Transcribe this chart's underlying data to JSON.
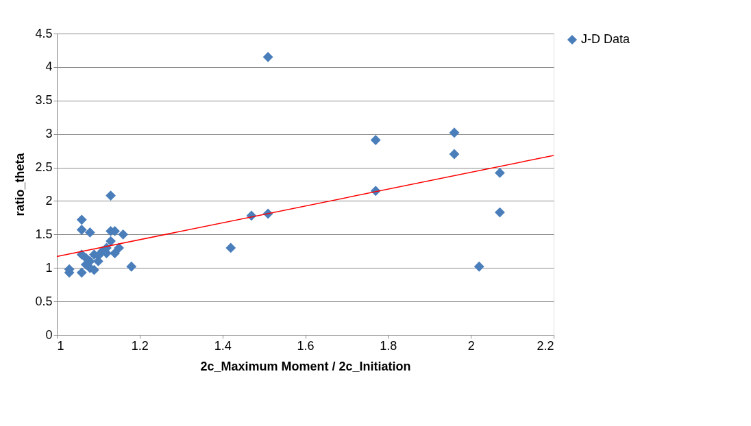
{
  "chart_data": {
    "type": "scatter",
    "xlabel": "2c_Maximum Moment / 2c_Initiation",
    "ylabel": "ratio_theta",
    "xlim": [
      1,
      2.2
    ],
    "xticks": [
      1,
      1.2,
      1.4,
      1.6,
      1.8,
      2,
      2.2
    ],
    "ylim": [
      0,
      4.5
    ],
    "yticks": [
      0,
      0.5,
      1,
      1.5,
      2,
      2.5,
      3,
      3.5,
      4,
      4.5
    ],
    "grid": "y",
    "legend": "right",
    "series": [
      {
        "name": "J-D Data",
        "color": "#4a7ebb",
        "marker": "diamond",
        "x": [
          1.03,
          1.03,
          1.06,
          1.06,
          1.06,
          1.06,
          1.07,
          1.07,
          1.08,
          1.08,
          1.08,
          1.09,
          1.09,
          1.1,
          1.1,
          1.11,
          1.12,
          1.12,
          1.13,
          1.13,
          1.13,
          1.14,
          1.14,
          1.15,
          1.16,
          1.18,
          1.42,
          1.47,
          1.51,
          1.51,
          1.77,
          1.77,
          1.96,
          1.96,
          2.02,
          2.07,
          2.07
        ],
        "values": [
          0.93,
          0.98,
          0.93,
          1.72,
          1.57,
          1.2,
          1.05,
          1.15,
          1.53,
          1.0,
          1.1,
          0.97,
          1.2,
          1.1,
          1.18,
          1.25,
          1.3,
          1.22,
          1.55,
          2.08,
          1.4,
          1.55,
          1.22,
          1.3,
          1.5,
          1.02,
          1.3,
          1.78,
          1.81,
          4.15,
          2.91,
          2.15,
          3.02,
          2.7,
          1.02,
          2.42,
          1.83
        ]
      },
      {
        "color": "#ff0000",
        "type": "line",
        "line_style": "solid",
        "marker": "none",
        "x": [
          1,
          2.2
        ],
        "values": [
          1.17,
          2.68
        ]
      }
    ]
  }
}
